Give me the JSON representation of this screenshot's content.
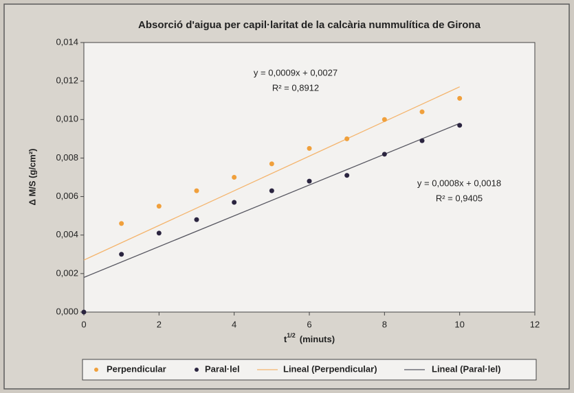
{
  "chart_data": {
    "type": "scatter",
    "title": "Absorció d'aigua per capil·laritat de la calcària nummulítica de Girona",
    "xlabel": {
      "base": "t",
      "sup": "1/2",
      "rest": "(minuts)"
    },
    "ylabel": "Δ M/S (g/cm²)",
    "xlim": [
      0,
      12
    ],
    "xticks": [
      0,
      2,
      4,
      6,
      8,
      10,
      12
    ],
    "ylim": [
      0,
      0.014
    ],
    "yticks": [
      {
        "value": 0,
        "label": "0,000"
      },
      {
        "value": 0.002,
        "label": "0,002"
      },
      {
        "value": 0.004,
        "label": "0,004"
      },
      {
        "value": 0.006,
        "label": "0,006"
      },
      {
        "value": 0.008,
        "label": "0,008"
      },
      {
        "value": 0.01,
        "label": "0,010"
      },
      {
        "value": 0.012,
        "label": "0,012"
      },
      {
        "value": 0.014,
        "label": "0,014"
      }
    ],
    "grid": false,
    "series": [
      {
        "name": "Perpendicular",
        "color": "#f0a03c",
        "x": [
          1,
          2,
          3,
          4,
          5,
          6,
          7,
          8,
          9,
          10
        ],
        "values": [
          0.0046,
          0.0055,
          0.0063,
          0.007,
          0.0077,
          0.0085,
          0.009,
          0.01,
          0.0104,
          0.0111
        ]
      },
      {
        "name": "Paral·lel",
        "color": "#2b2540",
        "x": [
          0,
          1,
          2,
          3,
          4,
          5,
          6,
          7,
          8,
          9,
          10
        ],
        "values": [
          0,
          0.003,
          0.0041,
          0.0048,
          0.0057,
          0.0063,
          0.0068,
          0.0071,
          0.0082,
          0.0089,
          0.0097
        ]
      }
    ],
    "trendlines": [
      {
        "name": "Lineal (Perpendicular)",
        "color": "#f4b46c",
        "slope": 0.0009,
        "intercept": 0.0027,
        "equation": "y = 0,0009x + 0,0027",
        "r2": "R² = 0,8912"
      },
      {
        "name": "Lineal (Paral·lel)",
        "color": "#55555f",
        "slope": 0.0008,
        "intercept": 0.0018,
        "equation": "y = 0,0008x + 0,0018",
        "r2": "R² = 0,9405"
      }
    ],
    "legend": "bottom"
  }
}
